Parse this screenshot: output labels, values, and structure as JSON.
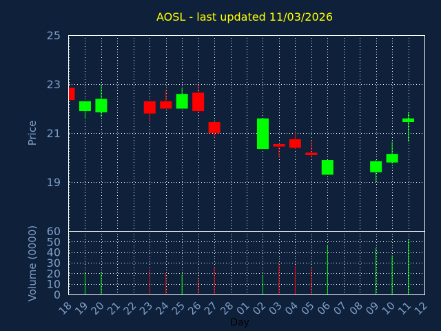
{
  "colors": {
    "background": "#0f213a",
    "frame": "#ffffff",
    "grid": "#ffffff",
    "title": "#ffff00",
    "axis_text": "#7f9fc8",
    "xlabel_text": "#000000",
    "up": "#00ff00",
    "down": "#ff0000"
  },
  "chart_data": {
    "type": "candlestick",
    "title": "AOSL - last updated 11/03/2026",
    "xlabel": "Day",
    "price_panel": {
      "ylabel": "Price",
      "ylim": [
        17,
        25
      ],
      "yticks": [
        19,
        21,
        23,
        25
      ]
    },
    "volume_panel": {
      "ylabel": "Volume (0000)",
      "ylim": [
        0,
        60
      ],
      "yticks": [
        0,
        10,
        20,
        30,
        40,
        50,
        60
      ]
    },
    "days": [
      "18",
      "19",
      "20",
      "21",
      "22",
      "23",
      "24",
      "25",
      "26",
      "27",
      "28",
      "01",
      "02",
      "03",
      "04",
      "05",
      "06",
      "07",
      "08",
      "09",
      "10",
      "11",
      "12"
    ],
    "candles": [
      {
        "day": "18",
        "open": 22.85,
        "close": 22.35,
        "high": 22.85,
        "low": 22.35,
        "volume": 0
      },
      {
        "day": "19",
        "open": 21.9,
        "close": 22.3,
        "high": 22.3,
        "low": 21.6,
        "volume": 20
      },
      {
        "day": "20",
        "open": 21.85,
        "close": 22.4,
        "high": 23.0,
        "low": 21.65,
        "volume": 21
      },
      {
        "day": "23",
        "open": 22.3,
        "close": 21.8,
        "high": 22.3,
        "low": 21.5,
        "volume": 24
      },
      {
        "day": "24",
        "open": 22.3,
        "close": 22.0,
        "high": 22.75,
        "low": 22.0,
        "volume": 20
      },
      {
        "day": "25",
        "open": 22.0,
        "close": 22.6,
        "high": 22.85,
        "low": 22.0,
        "volume": 19
      },
      {
        "day": "26",
        "open": 22.65,
        "close": 21.9,
        "high": 23.0,
        "low": 21.8,
        "volume": 16
      },
      {
        "day": "27",
        "open": 21.45,
        "close": 21.0,
        "high": 21.45,
        "low": 20.8,
        "volume": 26
      },
      {
        "day": "02",
        "open": 20.35,
        "close": 21.6,
        "high": 21.6,
        "low": 20.35,
        "volume": 18
      },
      {
        "day": "03",
        "open": 20.55,
        "close": 20.45,
        "high": 20.55,
        "low": 20.0,
        "volume": 29
      },
      {
        "day": "04",
        "open": 20.75,
        "close": 20.4,
        "high": 21.0,
        "low": 20.35,
        "volume": 27
      },
      {
        "day": "05",
        "open": 20.2,
        "close": 20.1,
        "high": 20.7,
        "low": 20.0,
        "volume": 25
      },
      {
        "day": "06",
        "open": 19.3,
        "close": 19.9,
        "high": 19.9,
        "low": 19.3,
        "volume": 46
      },
      {
        "day": "09",
        "open": 19.4,
        "close": 19.85,
        "high": 19.9,
        "low": 19.0,
        "volume": 44
      },
      {
        "day": "10",
        "open": 19.8,
        "close": 20.15,
        "high": 20.65,
        "low": 19.75,
        "volume": 37
      },
      {
        "day": "11",
        "open": 21.45,
        "close": 21.6,
        "high": 21.85,
        "low": 20.65,
        "volume": 52
      }
    ]
  }
}
